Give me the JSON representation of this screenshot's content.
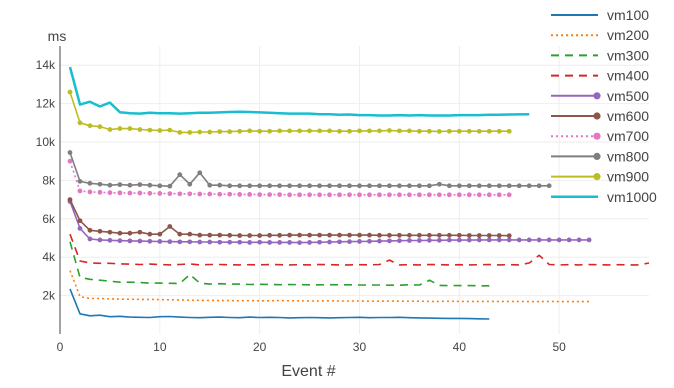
{
  "chart_data": {
    "type": "line",
    "title": "",
    "xlabel": "Event #",
    "ylabel": "ms",
    "xlim": [
      0,
      59
    ],
    "ylim": [
      0,
      15000
    ],
    "x_ticks": [
      0,
      10,
      20,
      30,
      40,
      50
    ],
    "x_tick_labels": [
      "0",
      "10",
      "20",
      "30",
      "40",
      "50"
    ],
    "y_ticks": [
      2000,
      4000,
      6000,
      8000,
      10000,
      12000,
      14000
    ],
    "y_tick_labels": [
      "2k",
      "4k",
      "6k",
      "8k",
      "10k",
      "12k",
      "14k"
    ],
    "grid": true,
    "legend_position": "top-right",
    "series": [
      {
        "name": "vm100",
        "color": "#1f77b4",
        "style": "solid",
        "marker": false,
        "values": [
          2350,
          1050,
          950,
          980,
          900,
          920,
          880,
          870,
          860,
          900,
          910,
          880,
          860,
          850,
          870,
          880,
          860,
          850,
          880,
          860,
          870,
          860,
          840,
          850,
          860,
          850,
          840,
          850,
          860,
          870,
          850,
          860,
          860,
          870,
          850,
          840,
          830,
          820,
          810,
          810,
          800,
          790,
          780
        ]
      },
      {
        "name": "vm200",
        "color": "#ff7f0e",
        "style": "dotted",
        "marker": false,
        "values": [
          3300,
          1950,
          1850,
          1850,
          1830,
          1820,
          1810,
          1800,
          1800,
          1790,
          1780,
          1770,
          1760,
          1750,
          1750,
          1740,
          1740,
          1730,
          1740,
          1730,
          1730,
          1740,
          1730,
          1730,
          1720,
          1720,
          1730,
          1720,
          1720,
          1720,
          1710,
          1710,
          1720,
          1710,
          1710,
          1710,
          1700,
          1700,
          1710,
          1700,
          1700,
          1700,
          1700,
          1700,
          1700,
          1700,
          1690,
          1690,
          1700,
          1690,
          1690,
          1690,
          1690
        ]
      },
      {
        "name": "vm300",
        "color": "#2ca02c",
        "style": "dashed",
        "marker": false,
        "values": [
          4800,
          2950,
          2850,
          2800,
          2750,
          2700,
          2700,
          2680,
          2650,
          2650,
          2640,
          2630,
          3100,
          2650,
          2600,
          2620,
          2600,
          2600,
          2580,
          2590,
          2580,
          2570,
          2580,
          2570,
          2560,
          2560,
          2570,
          2560,
          2560,
          2550,
          2550,
          2550,
          2540,
          2540,
          2560,
          2550,
          2800,
          2530,
          2520,
          2520,
          2520,
          2510,
          2510
        ]
      },
      {
        "name": "vm400",
        "color": "#d62728",
        "style": "dashed",
        "marker": false,
        "values": [
          5200,
          3800,
          3700,
          3680,
          3680,
          3650,
          3640,
          3620,
          3640,
          3620,
          3600,
          3620,
          3650,
          3600,
          3620,
          3620,
          3610,
          3600,
          3610,
          3600,
          3620,
          3610,
          3600,
          3610,
          3600,
          3620,
          3610,
          3600,
          3600,
          3610,
          3600,
          3620,
          3850,
          3600,
          3610,
          3600,
          3620,
          3610,
          3600,
          3610,
          3600,
          3610,
          3620,
          3600,
          3610,
          3600,
          3700,
          4100,
          3620,
          3600,
          3610,
          3600,
          3620,
          3610,
          3600,
          3610,
          3600,
          3600,
          3700
        ]
      },
      {
        "name": "vm500",
        "color": "#9467bd",
        "style": "solid",
        "marker": true,
        "values": [
          6900,
          5500,
          4950,
          4900,
          4880,
          4860,
          4850,
          4840,
          4830,
          4820,
          4810,
          4800,
          4800,
          4790,
          4790,
          4780,
          4780,
          4780,
          4770,
          4780,
          4770,
          4770,
          4770,
          4760,
          4770,
          4780,
          4790,
          4800,
          4810,
          4820,
          4830,
          4840,
          4850,
          4860,
          4870,
          4870,
          4880,
          4880,
          4890,
          4890,
          4890,
          4900,
          4900,
          4900,
          4900,
          4900,
          4900,
          4900,
          4900,
          4900,
          4900,
          4900,
          4900
        ]
      },
      {
        "name": "vm600",
        "color": "#8c564b",
        "style": "solid",
        "marker": true,
        "values": [
          7000,
          5900,
          5400,
          5350,
          5300,
          5250,
          5250,
          5300,
          5200,
          5200,
          5600,
          5200,
          5200,
          5150,
          5150,
          5150,
          5140,
          5130,
          5130,
          5130,
          5140,
          5140,
          5150,
          5150,
          5150,
          5150,
          5150,
          5150,
          5150,
          5150,
          5150,
          5140,
          5140,
          5140,
          5140,
          5140,
          5140,
          5140,
          5140,
          5140,
          5130,
          5130,
          5130,
          5130,
          5120
        ]
      },
      {
        "name": "vm700",
        "color": "#e377c2",
        "style": "dotted",
        "marker": true,
        "values": [
          9000,
          7450,
          7400,
          7380,
          7360,
          7350,
          7340,
          7340,
          7330,
          7320,
          7310,
          7300,
          7300,
          7290,
          7290,
          7280,
          7280,
          7270,
          7270,
          7260,
          7260,
          7260,
          7250,
          7250,
          7250,
          7250,
          7250,
          7250,
          7250,
          7250,
          7250,
          7250,
          7250,
          7250,
          7250,
          7250,
          7250,
          7250,
          7250,
          7250,
          7250,
          7250,
          7250,
          7250,
          7250
        ]
      },
      {
        "name": "vm800",
        "color": "#7f7f7f",
        "style": "solid",
        "marker": true,
        "values": [
          9450,
          7950,
          7850,
          7800,
          7750,
          7780,
          7750,
          7780,
          7750,
          7720,
          7700,
          8300,
          7800,
          8400,
          7750,
          7750,
          7720,
          7720,
          7720,
          7720,
          7720,
          7720,
          7720,
          7720,
          7720,
          7720,
          7720,
          7720,
          7720,
          7720,
          7720,
          7720,
          7720,
          7720,
          7720,
          7720,
          7720,
          7800,
          7720,
          7720,
          7720,
          7720,
          7720,
          7720,
          7720,
          7720,
          7720,
          7720,
          7720
        ]
      },
      {
        "name": "vm900",
        "color": "#bcbd22",
        "style": "solid",
        "marker": true,
        "values": [
          12600,
          11000,
          10850,
          10800,
          10650,
          10700,
          10700,
          10650,
          10620,
          10600,
          10620,
          10500,
          10500,
          10520,
          10520,
          10540,
          10540,
          10560,
          10580,
          10560,
          10560,
          10580,
          10580,
          10580,
          10580,
          10580,
          10580,
          10560,
          10560,
          10580,
          10580,
          10580,
          10600,
          10580,
          10580,
          10560,
          10560,
          10550,
          10560,
          10560,
          10560,
          10560,
          10560,
          10560,
          10560
        ]
      },
      {
        "name": "vm1000",
        "color": "#17becf",
        "style": "solid",
        "marker": false,
        "values": [
          13900,
          11950,
          12100,
          11850,
          12050,
          11550,
          11500,
          11480,
          11520,
          11500,
          11500,
          11480,
          11500,
          11520,
          11520,
          11540,
          11560,
          11580,
          11560,
          11540,
          11520,
          11500,
          11480,
          11480,
          11480,
          11450,
          11450,
          11420,
          11430,
          11400,
          11400,
          11380,
          11380,
          11400,
          11380,
          11400,
          11380,
          11380,
          11380,
          11400,
          11400,
          11400,
          11420,
          11420,
          11430,
          11440,
          11450
        ]
      }
    ]
  }
}
